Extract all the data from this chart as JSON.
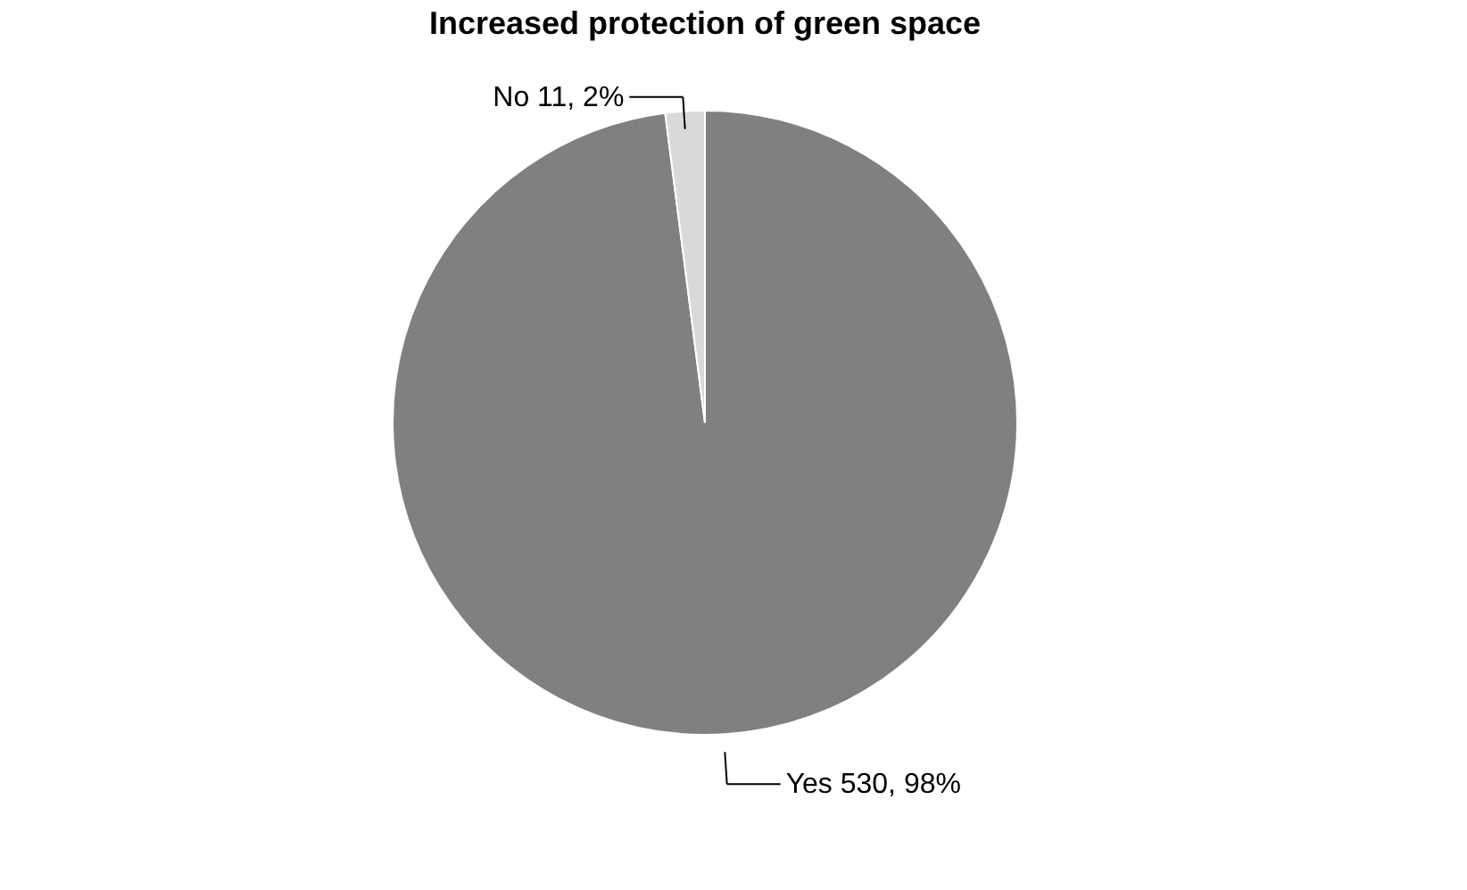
{
  "chart_data": {
    "type": "pie",
    "title": "Increased protection of green space",
    "categories": [
      "Yes",
      "No"
    ],
    "values": [
      530,
      11
    ],
    "colors": [
      "#808080",
      "#d9d9d9"
    ],
    "value_labels": [
      "530, 98%",
      "11, 2%"
    ],
    "legend": false
  }
}
